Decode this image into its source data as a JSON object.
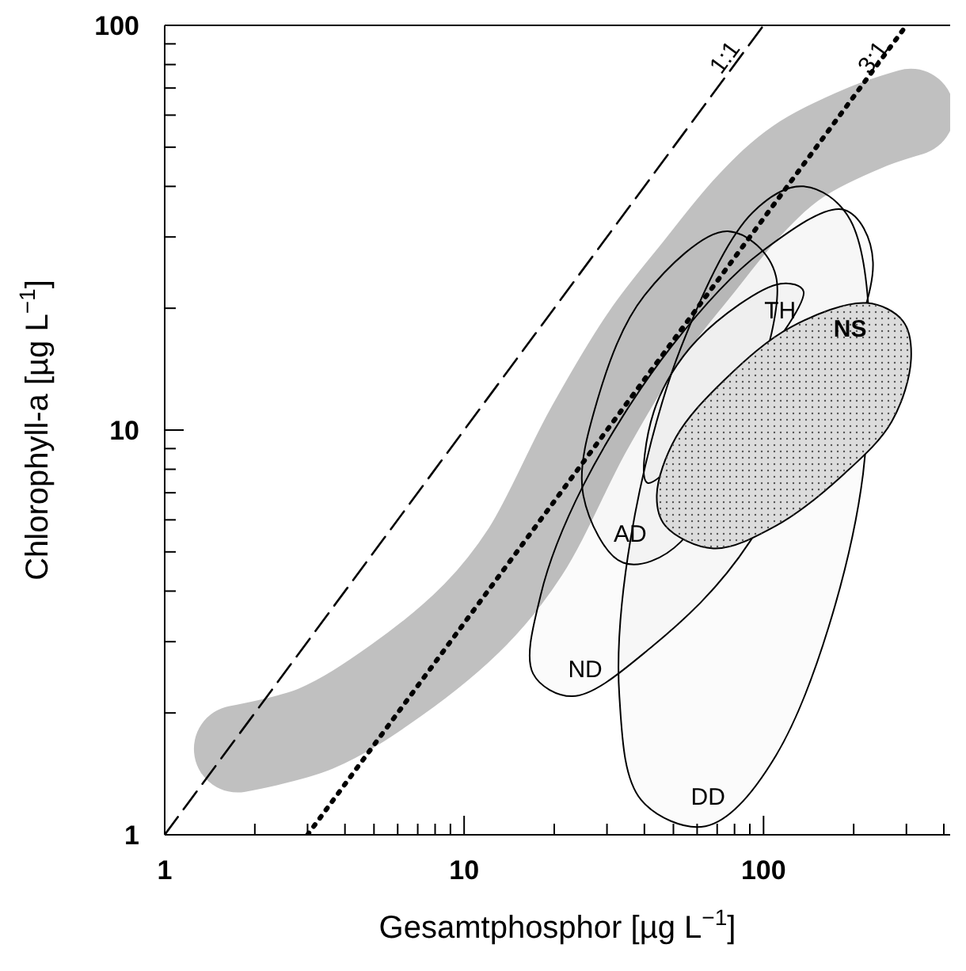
{
  "chart_data": {
    "type": "line",
    "xlabel": "Gesamtphosphor [µg L$^{−1}$]",
    "ylabel": "Chlorophyll-a [µg L$^{−1}$]",
    "log": "xy",
    "grid": false,
    "legend": false,
    "xlim": [
      1,
      420
    ],
    "ylim": [
      1,
      100
    ],
    "xticks": [
      1,
      {
        "value": 2,
        "label": null
      },
      {
        "value": 3,
        "label": null
      },
      {
        "value": 4,
        "label": null
      },
      {
        "value": 5,
        "label": null
      },
      {
        "value": 6,
        "label": null
      },
      {
        "value": 7,
        "label": null
      },
      {
        "value": 8,
        "label": null
      },
      {
        "value": 9,
        "label": null
      },
      10,
      {
        "value": 20,
        "label": null
      },
      {
        "value": 30,
        "label": null
      },
      {
        "value": 40,
        "label": null
      },
      {
        "value": 50,
        "label": null
      },
      {
        "value": 60,
        "label": null
      },
      {
        "value": 70,
        "label": null
      },
      {
        "value": 80,
        "label": null
      },
      {
        "value": 90,
        "label": null
      },
      100,
      {
        "value": 200,
        "label": null
      },
      {
        "value": 300,
        "label": null
      },
      {
        "value": 400,
        "label": null
      }
    ],
    "yticks": [
      1,
      {
        "value": 2,
        "label": null
      },
      {
        "value": 3,
        "label": null
      },
      {
        "value": 4,
        "label": null
      },
      {
        "value": 5,
        "label": null
      },
      {
        "value": 6,
        "label": null
      },
      {
        "value": 7,
        "label": null
      },
      {
        "value": 8,
        "label": null
      },
      {
        "value": 9,
        "label": null
      },
      10,
      {
        "value": 20,
        "label": null
      },
      {
        "value": 30,
        "label": null
      },
      {
        "value": 40,
        "label": null
      },
      {
        "value": 50,
        "label": null
      },
      {
        "value": 60,
        "label": null
      },
      {
        "value": 70,
        "label": null
      },
      {
        "value": 80,
        "label": null
      },
      {
        "value": 90,
        "label": null
      },
      100
    ],
    "series": [
      {
        "x": [
          1.75,
          3.2,
          5.9,
          10.9,
          16,
          26,
          40,
          60,
          90,
          130,
          220,
          310
        ],
        "values": [
          1.63,
          1.83,
          2.4,
          3.5,
          5,
          10,
          17,
          25,
          36,
          46,
          56,
          61
        ],
        "color": "#c0c0c0",
        "line_style": "solid"
      },
      {
        "x": [
          1,
          100
        ],
        "values": [
          1,
          100
        ],
        "color": "#000000",
        "line_style": "dashed"
      },
      {
        "x": [
          3,
          300
        ],
        "values": [
          1,
          100
        ],
        "color": "#000000",
        "line_style": "dotted"
      },
      {
        "type": "area",
        "name": "DD",
        "x": [
          64,
          39,
          33,
          36,
          53,
          92,
          136,
          195,
          215,
          110,
          64
        ],
        "values": [
          1.05,
          1.22,
          2.2,
          5.4,
          16,
          34.5,
          40,
          33,
          7.8,
          1.57,
          1.05
        ],
        "color": "#000000"
      },
      {
        "type": "area",
        "name": "ND",
        "x": [
          23,
          17,
          18,
          25,
          49,
          98,
          186,
          232,
          90,
          42,
          23
        ],
        "values": [
          2.2,
          2.5,
          3.9,
          7.3,
          16,
          27.5,
          35,
          26,
          5.3,
          2.9,
          2.2
        ],
        "color": "#000000"
      },
      {
        "type": "area",
        "name": "AD",
        "x": [
          34,
          25,
          28,
          40,
          76,
          110,
          53,
          34
        ],
        "values": [
          4.7,
          6.9,
          12,
          21.5,
          31,
          24,
          5.3,
          4.7
        ],
        "color": "#000000"
      },
      {
        "type": "area",
        "name": "TH",
        "x": [
          136,
          41,
          43,
          60,
          114,
          136
        ],
        "values": [
          22,
          7.4,
          11.1,
          16.7,
          23,
          22
        ],
        "color": "#000000"
      },
      {
        "name": "NS",
        "type": "area",
        "x": [
          221,
          292,
          311,
          268,
          186,
          110,
          68,
          47,
          44,
          51,
          74,
          124
        ],
        "values": [
          20.6,
          18.6,
          15,
          10.5,
          7.8,
          5.8,
          5.1,
          5.8,
          6.9,
          9.6,
          13.3,
          18
        ],
        "color": "#dcdcdc"
      }
    ],
    "annotations": [
      {
        "text": "1:1",
        "x": 80,
        "y": 80
      },
      {
        "text": "3:1",
        "x": 250,
        "y": 80
      }
    ]
  }
}
